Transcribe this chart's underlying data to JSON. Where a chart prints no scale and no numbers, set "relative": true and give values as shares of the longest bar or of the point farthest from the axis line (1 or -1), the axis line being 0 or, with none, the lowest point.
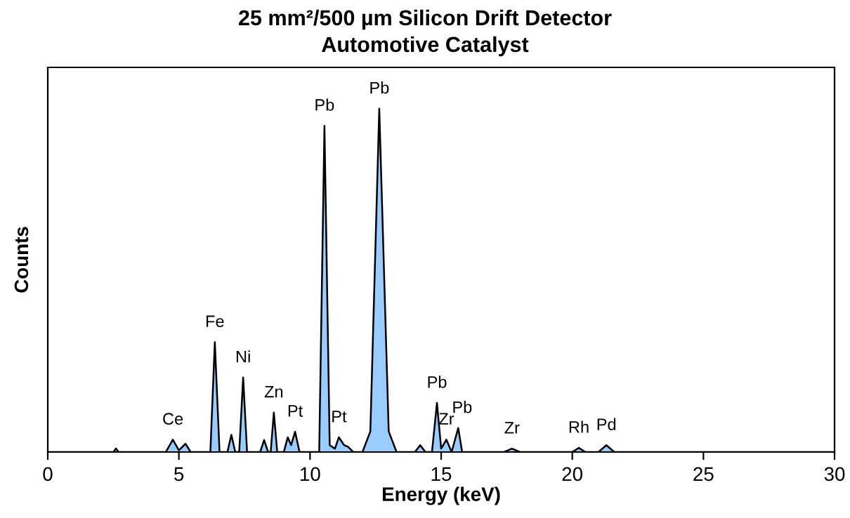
{
  "chart_data": {
    "type": "area",
    "relative": true,
    "title": "25 mm²/500 µm Silicon Drift Detector",
    "subtitle": "Automotive Catalyst",
    "xlabel": "Energy (keV)",
    "ylabel": "Counts",
    "xlim": [
      0,
      30
    ],
    "xticks": [
      0,
      5,
      10,
      15,
      20,
      25,
      30
    ],
    "grid": false,
    "legend": false,
    "series": [
      {
        "color": "#99ccff",
        "x": [
          0,
          2.5,
          2.6,
          2.7,
          4.5,
          4.77,
          5.0,
          5.25,
          5.45,
          6.2,
          6.37,
          6.55,
          6.85,
          7.0,
          7.15,
          7.3,
          7.45,
          7.6,
          8.1,
          8.25,
          8.4,
          8.5,
          8.62,
          8.75,
          9.0,
          9.15,
          9.28,
          9.43,
          9.6,
          10.35,
          10.55,
          10.75,
          10.95,
          11.1,
          11.3,
          11.45,
          11.65,
          12.0,
          12.3,
          12.64,
          13.0,
          13.3,
          14.0,
          14.2,
          14.4,
          14.65,
          14.84,
          15.0,
          15.2,
          15.4,
          15.65,
          15.8,
          15.95,
          17.4,
          17.7,
          18.0,
          20.0,
          20.25,
          20.5,
          21.0,
          21.3,
          21.6,
          30
        ],
        "values": [
          0,
          0,
          0.01,
          0,
          0,
          0.036,
          0.005,
          0.024,
          0,
          0,
          0.32,
          0,
          0,
          0.05,
          0,
          0,
          0.217,
          0,
          0,
          0.035,
          0,
          0,
          0.115,
          0,
          0,
          0.043,
          0.02,
          0.059,
          0,
          0,
          0.95,
          0.02,
          0.01,
          0.043,
          0.02,
          0.015,
          0,
          0,
          0.06,
          1,
          0.06,
          0,
          0,
          0.02,
          0,
          0,
          0.143,
          0.01,
          0.036,
          0,
          0.07,
          0,
          0,
          0,
          0.01,
          0,
          0,
          0.012,
          0,
          0,
          0.02,
          0,
          0
        ]
      }
    ],
    "annotations": [
      {
        "text": "Ce",
        "x": 4.77,
        "y": 0.036
      },
      {
        "text": "Fe",
        "x": 6.37,
        "y": 0.32
      },
      {
        "text": "Ni",
        "x": 7.45,
        "y": 0.217
      },
      {
        "text": "Zn",
        "x": 8.62,
        "y": 0.115
      },
      {
        "text": "Pt",
        "x": 9.43,
        "y": 0.059
      },
      {
        "text": "Pb",
        "x": 10.55,
        "y": 0.95
      },
      {
        "text": "Pt",
        "x": 11.1,
        "y": 0.043
      },
      {
        "text": "Pb",
        "x": 12.64,
        "y": 1
      },
      {
        "text": "Pb",
        "x": 14.84,
        "y": 0.143
      },
      {
        "text": "Zr",
        "x": 15.2,
        "y": 0.036
      },
      {
        "text": "Pb",
        "x": 15.8,
        "y": 0.07
      },
      {
        "text": "Zr",
        "x": 17.7,
        "y": 0.01
      },
      {
        "text": "Rh",
        "x": 20.25,
        "y": 0.012
      },
      {
        "text": "Pd",
        "x": 21.3,
        "y": 0.02
      }
    ]
  }
}
